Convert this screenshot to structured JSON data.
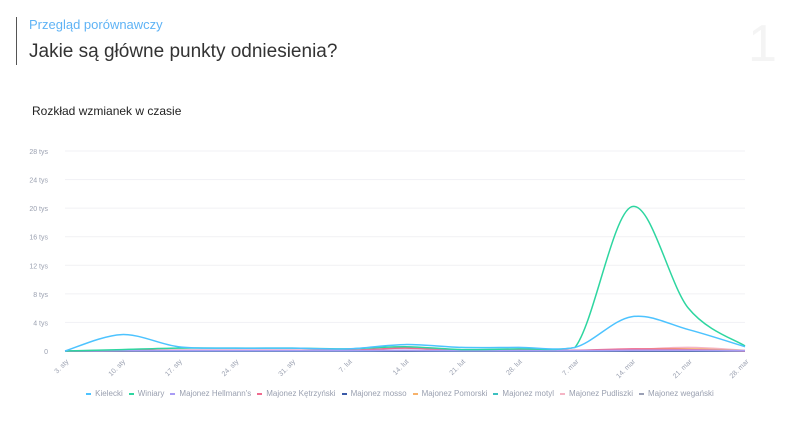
{
  "header": {
    "subtitle": "Przegląd porównawczy",
    "title": "Jakie są główne punkty odniesienia?",
    "page_number": "1"
  },
  "chart_data": {
    "type": "line",
    "title": "Rozkład wzmianek w czasie",
    "categories": [
      "3. sty",
      "10. sty",
      "17. sty",
      "24. sty",
      "31. sty",
      "7. lut",
      "14. lut",
      "21. lut",
      "28. lut",
      "7. mar",
      "14. mar",
      "21. mar",
      "28. mar"
    ],
    "yticks": [
      {
        "v": 0,
        "label": "0"
      },
      {
        "v": 4000,
        "label": "4 tys"
      },
      {
        "v": 8000,
        "label": "8 tys"
      },
      {
        "v": 12000,
        "label": "12 tys"
      },
      {
        "v": 16000,
        "label": "16 tys"
      },
      {
        "v": 20000,
        "label": "20 tys"
      },
      {
        "v": 24000,
        "label": "24 tys"
      },
      {
        "v": 28000,
        "label": "28 tys"
      }
    ],
    "ylim": [
      0,
      28000
    ],
    "grid": true,
    "legend": "bottom",
    "series": [
      {
        "name": "Kielecki",
        "color": "#4dc3ff",
        "values": [
          0,
          2300,
          600,
          400,
          400,
          300,
          900,
          500,
          500,
          500,
          4800,
          3000,
          600
        ]
      },
      {
        "name": "Winiary",
        "color": "#2ed6a0",
        "values": [
          0,
          200,
          400,
          400,
          400,
          300,
          600,
          200,
          300,
          500,
          20200,
          6000,
          700
        ]
      },
      {
        "name": "Majonez Hellmann's",
        "color": "#a99cf5",
        "values": [
          0,
          50,
          50,
          50,
          50,
          50,
          100,
          50,
          50,
          50,
          100,
          100,
          50
        ]
      },
      {
        "name": "Majonez Kętrzyński",
        "color": "#f06b8f",
        "values": [
          0,
          100,
          100,
          100,
          100,
          100,
          400,
          100,
          100,
          100,
          300,
          200,
          0
        ]
      },
      {
        "name": "Majonez mosso",
        "color": "#3a5aa8",
        "values": [
          0,
          0,
          0,
          0,
          0,
          0,
          0,
          0,
          0,
          0,
          0,
          0,
          0
        ]
      },
      {
        "name": "Majonez Pomorski",
        "color": "#f7b26b",
        "values": [
          0,
          0,
          50,
          50,
          50,
          50,
          100,
          50,
          50,
          50,
          250,
          300,
          50
        ]
      },
      {
        "name": "Majonez motyl",
        "color": "#3bc0c0",
        "values": [
          0,
          0,
          0,
          0,
          0,
          0,
          50,
          0,
          0,
          0,
          50,
          50,
          0
        ]
      },
      {
        "name": "Majonez Pudliszki",
        "color": "#f5b5c5",
        "values": [
          0,
          50,
          50,
          50,
          50,
          50,
          100,
          50,
          50,
          50,
          200,
          500,
          100
        ]
      },
      {
        "name": "Majonez wegański",
        "color": "#9aa0b5",
        "values": [
          0,
          0,
          0,
          0,
          0,
          0,
          0,
          0,
          0,
          0,
          0,
          0,
          0
        ]
      }
    ]
  }
}
